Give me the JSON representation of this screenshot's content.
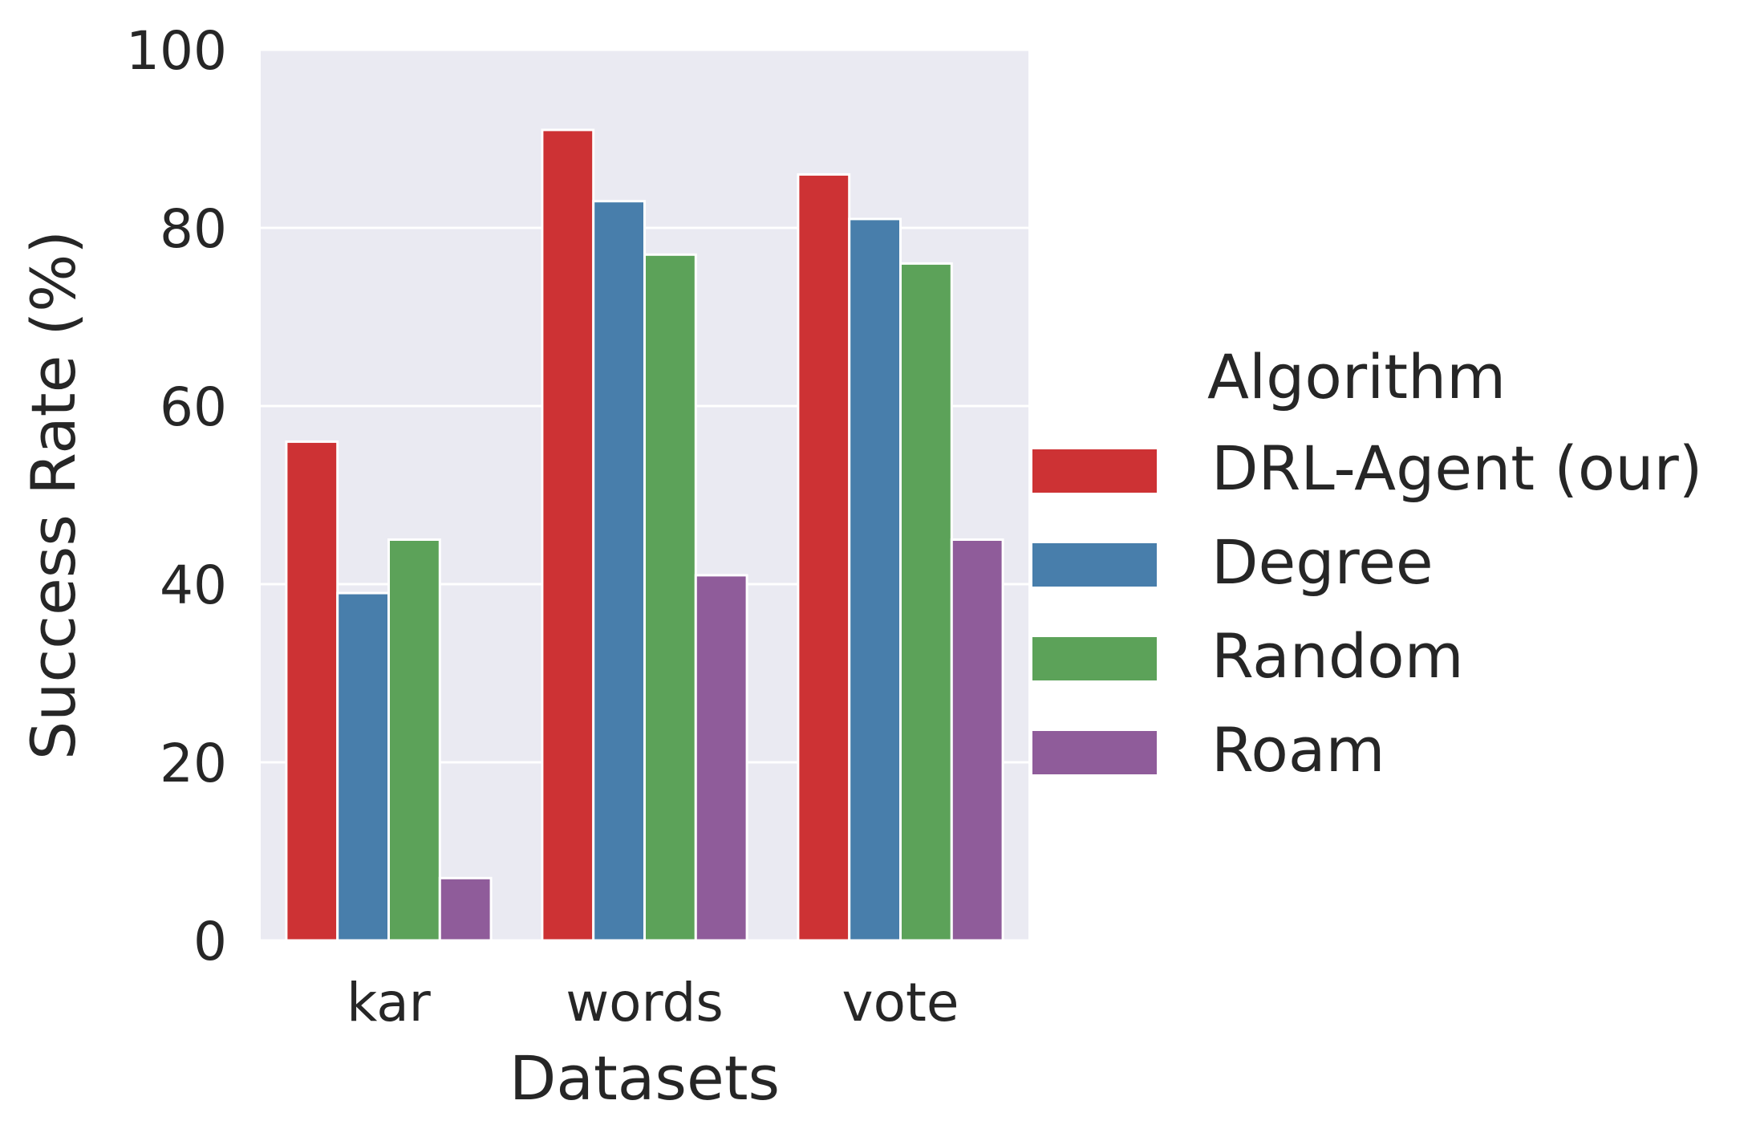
{
  "chart_data": {
    "type": "bar",
    "categories": [
      "kar",
      "words",
      "vote"
    ],
    "series": [
      {
        "name": "DRL-Agent (our)",
        "values": [
          56,
          91,
          86
        ],
        "color": "#cd3234"
      },
      {
        "name": "Degree",
        "values": [
          39,
          83,
          81
        ],
        "color": "#487eab"
      },
      {
        "name": "Random",
        "values": [
          45,
          77,
          76
        ],
        "color": "#5ca259"
      },
      {
        "name": "Roam",
        "values": [
          7,
          41,
          45
        ],
        "color": "#8f5c9a"
      }
    ],
    "title": "",
    "xlabel": "Datasets",
    "ylabel": "Success Rate (%)",
    "ylim": [
      0,
      100
    ],
    "yticks": [
      0,
      20,
      40,
      60,
      80,
      100
    ],
    "grid": true,
    "legend": {
      "title": "Algorithm",
      "placement": "right"
    },
    "colors": {
      "plot_background": "#eaeaf2",
      "grid": "#ffffff",
      "text": "#262626"
    }
  }
}
